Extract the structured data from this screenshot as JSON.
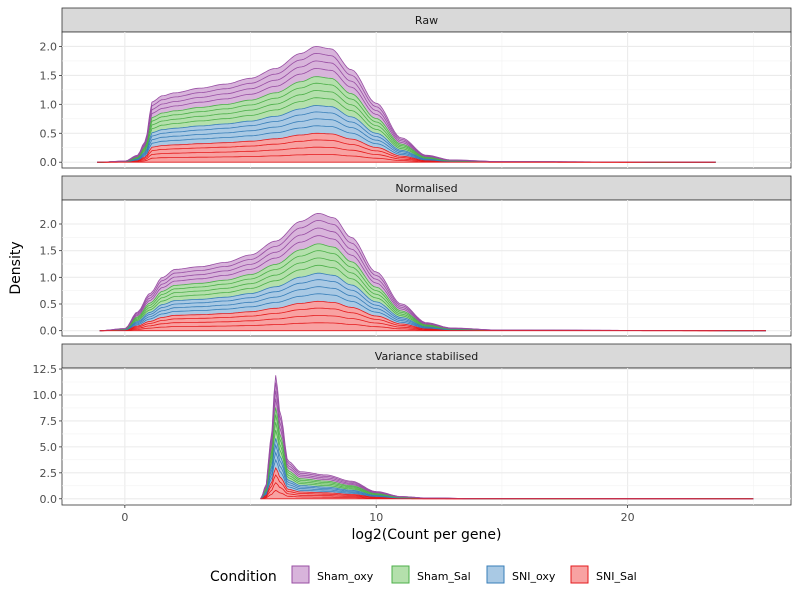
{
  "chart_data": {
    "type": "area",
    "subtype": "stacked density ridges faceted",
    "xlabel": "log2(Count per gene)",
    "ylabel": "Density",
    "x_ticks": [
      0,
      10,
      20
    ],
    "xlim": [
      -2.5,
      26.5
    ],
    "legend": {
      "title": "Condition",
      "placement": "bottom",
      "entries": [
        {
          "name": "Sham_oxy",
          "fill": "#d8b4db",
          "stroke": "#984ea3"
        },
        {
          "name": "Sham_Sal",
          "fill": "#b4e0ac",
          "stroke": "#4daf4a"
        },
        {
          "name": "SNI_oxy",
          "fill": "#a9c9e4",
          "stroke": "#377eb8"
        },
        {
          "name": "SNI_Sal",
          "fill": "#f8a2a2",
          "stroke": "#e41a1c"
        }
      ]
    },
    "panels": [
      {
        "title": "Raw",
        "y_ticks": [
          "0.0",
          "0.5",
          "1.0",
          "1.5",
          "2.0"
        ],
        "y_tick_values": [
          0,
          0.5,
          1.0,
          1.5,
          2.0
        ],
        "ylim": [
          -0.1,
          2.25
        ],
        "x_range": [
          -1.1,
          23.5
        ],
        "total_profile": [
          [
            -1.1,
            0.0
          ],
          [
            0,
            0.02
          ],
          [
            0.5,
            0.12
          ],
          [
            0.8,
            0.35
          ],
          [
            1.1,
            1.05
          ],
          [
            1.5,
            1.15
          ],
          [
            2,
            1.2
          ],
          [
            3,
            1.28
          ],
          [
            4,
            1.35
          ],
          [
            5,
            1.45
          ],
          [
            6,
            1.62
          ],
          [
            7,
            1.88
          ],
          [
            7.6,
            2.0
          ],
          [
            8.2,
            1.96
          ],
          [
            9,
            1.6
          ],
          [
            10,
            1.02
          ],
          [
            11,
            0.42
          ],
          [
            12,
            0.12
          ],
          [
            13,
            0.04
          ],
          [
            15,
            0.01
          ],
          [
            23.5,
            0.0
          ]
        ],
        "condition_shares": {
          "Sham_oxy": 0.26,
          "Sham_Sal": 0.25,
          "SNI_oxy": 0.24,
          "SNI_Sal": 0.25
        }
      },
      {
        "title": "Normalised",
        "y_ticks": [
          "0.0",
          "0.5",
          "1.0",
          "1.5",
          "2.0"
        ],
        "y_tick_values": [
          0,
          0.5,
          1.0,
          1.5,
          2.0
        ],
        "ylim": [
          -0.1,
          2.45
        ],
        "x_range": [
          -1.0,
          25.5
        ],
        "total_profile": [
          [
            -1.0,
            0.0
          ],
          [
            0,
            0.04
          ],
          [
            0.5,
            0.35
          ],
          [
            1.0,
            0.7
          ],
          [
            1.5,
            1.0
          ],
          [
            2,
            1.15
          ],
          [
            3,
            1.2
          ],
          [
            4,
            1.28
          ],
          [
            5,
            1.42
          ],
          [
            6,
            1.68
          ],
          [
            7,
            2.05
          ],
          [
            7.7,
            2.2
          ],
          [
            8.3,
            2.12
          ],
          [
            9,
            1.75
          ],
          [
            10,
            1.1
          ],
          [
            11,
            0.5
          ],
          [
            12,
            0.15
          ],
          [
            13,
            0.05
          ],
          [
            15,
            0.01
          ],
          [
            25.5,
            0.0
          ]
        ],
        "condition_shares": {
          "Sham_oxy": 0.26,
          "Sham_Sal": 0.25,
          "SNI_oxy": 0.24,
          "SNI_Sal": 0.25
        }
      },
      {
        "title": "Variance stabilised",
        "y_ticks": [
          "0.0",
          "2.5",
          "5.0",
          "7.5",
          "10.0",
          "12.5"
        ],
        "y_tick_values": [
          0,
          2.5,
          5.0,
          7.5,
          10.0,
          12.5
        ],
        "ylim": [
          -0.6,
          12.6
        ],
        "x_range": [
          5.4,
          25.0
        ],
        "total_profile": [
          [
            5.4,
            0.0
          ],
          [
            5.6,
            1.2
          ],
          [
            5.8,
            5.5
          ],
          [
            6.0,
            11.9
          ],
          [
            6.2,
            8.0
          ],
          [
            6.5,
            3.6
          ],
          [
            7,
            2.6
          ],
          [
            8,
            2.3
          ],
          [
            9,
            1.7
          ],
          [
            10,
            0.7
          ],
          [
            11,
            0.22
          ],
          [
            12,
            0.08
          ],
          [
            14,
            0.02
          ],
          [
            25,
            0.0
          ]
        ],
        "condition_shares": {
          "Sham_oxy": 0.26,
          "Sham_Sal": 0.25,
          "SNI_oxy": 0.24,
          "SNI_Sal": 0.25
        }
      }
    ],
    "samples_per_condition": 4,
    "grid": true
  }
}
